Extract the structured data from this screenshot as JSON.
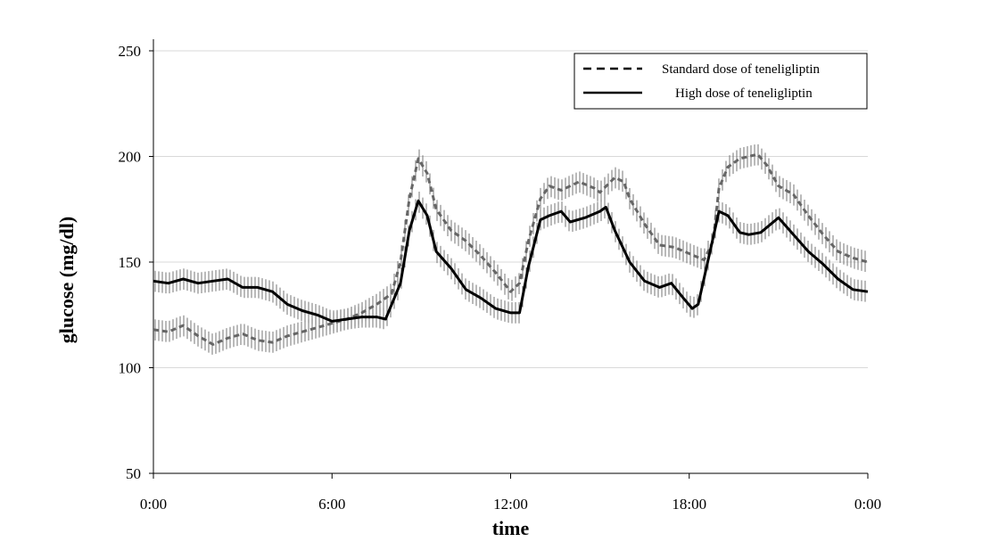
{
  "chart_data": {
    "type": "line",
    "title": "",
    "xlabel": "time",
    "ylabel": "glucose (mg/dl)",
    "xlim": [
      0,
      24
    ],
    "ylim": [
      50,
      250
    ],
    "yticks": [
      50,
      100,
      150,
      200,
      250
    ],
    "ytick_labels": [
      "50",
      "100",
      "150",
      "200",
      "250"
    ],
    "xticks": [
      0,
      6,
      12,
      18,
      24
    ],
    "xtick_labels": [
      "0:00",
      "6:00",
      "12:00",
      "18:00",
      "0:00"
    ],
    "grid": "horizontal",
    "legend_position": "top-right",
    "error_bar_halfwidth": 5,
    "series": [
      {
        "name": "Standard dose of teneligliptin",
        "style": "dashed",
        "color": "#666666",
        "x": [
          0,
          0.5,
          1,
          1.5,
          2,
          2.5,
          3,
          3.5,
          4,
          4.5,
          5,
          5.5,
          6,
          6.5,
          7,
          7.5,
          8,
          8.3,
          8.6,
          8.9,
          9.2,
          9.5,
          10,
          10.5,
          11,
          11.5,
          12,
          12.3,
          12.6,
          13,
          13.3,
          13.7,
          14,
          14.3,
          14.8,
          15,
          15.5,
          15.8,
          16,
          16.5,
          17,
          17.5,
          18,
          18.5,
          18.8,
          19,
          19.3,
          19.7,
          20,
          20.3,
          20.6,
          21,
          21.5,
          22,
          22.5,
          23,
          23.5,
          24
        ],
        "values": [
          118,
          117,
          120,
          115,
          111,
          114,
          116,
          113,
          112,
          115,
          117,
          119,
          121,
          123,
          126,
          130,
          135,
          150,
          180,
          199,
          192,
          175,
          165,
          160,
          153,
          145,
          136,
          140,
          160,
          180,
          186,
          184,
          186,
          188,
          185,
          183,
          190,
          188,
          180,
          168,
          158,
          157,
          154,
          151,
          160,
          185,
          195,
          199,
          200,
          201,
          196,
          186,
          182,
          172,
          163,
          155,
          152,
          150
        ]
      },
      {
        "name": "High  dose of teneligliptin",
        "style": "solid",
        "color": "#000000",
        "x": [
          0,
          0.5,
          1,
          1.5,
          2,
          2.5,
          3,
          3.5,
          4,
          4.5,
          5,
          5.5,
          6,
          6.5,
          7,
          7.5,
          7.8,
          8.3,
          8.6,
          8.9,
          9.2,
          9.5,
          10,
          10.5,
          11,
          11.5,
          12,
          12.3,
          12.6,
          13,
          13.3,
          13.7,
          14,
          14.5,
          15,
          15.2,
          15.5,
          16,
          16.5,
          17,
          17.4,
          17.8,
          18.1,
          18.3,
          18.7,
          19,
          19.3,
          19.7,
          20,
          20.4,
          21,
          21.5,
          22,
          22.5,
          23,
          23.5,
          24
        ],
        "values": [
          141,
          140,
          142,
          140,
          141,
          142,
          138,
          138,
          136,
          130,
          127,
          125,
          122,
          123,
          124,
          124,
          123,
          140,
          165,
          179,
          172,
          155,
          147,
          137,
          133,
          128,
          126,
          126,
          148,
          170,
          172,
          174,
          169,
          171,
          174,
          176,
          165,
          150,
          141,
          138,
          140,
          133,
          128,
          130,
          155,
          174,
          172,
          164,
          163,
          164,
          171,
          163,
          155,
          149,
          142,
          137,
          136
        ]
      }
    ]
  }
}
